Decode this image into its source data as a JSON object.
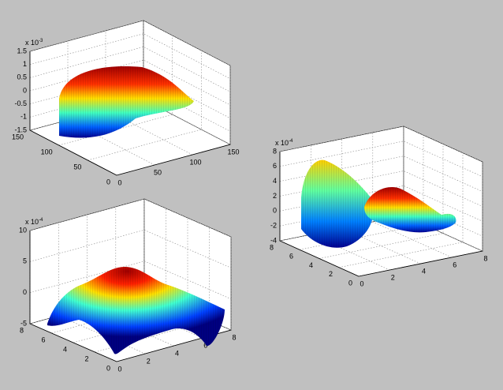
{
  "chart_data": [
    {
      "type": "surface",
      "zlabel_exponent": {
        "base": "x 10",
        "power": "-3"
      },
      "xlim": [
        0,
        150
      ],
      "xticks": [
        0,
        50,
        100,
        150
      ],
      "ylim": [
        0,
        150
      ],
      "yticks": [
        0,
        50,
        100,
        150
      ],
      "zlim": [
        -1.5,
        1.5
      ],
      "zticks": [
        -1.5,
        -1,
        -0.5,
        0,
        0.5,
        1,
        1.5
      ],
      "grid": true
    },
    {
      "type": "surface",
      "zlabel_exponent": {
        "base": "x 10",
        "power": "-4"
      },
      "xlim": [
        0,
        8
      ],
      "xticks": [
        0,
        2,
        4,
        6,
        8
      ],
      "ylim": [
        0,
        8
      ],
      "yticks": [
        0,
        2,
        4,
        6,
        8
      ],
      "zlim": [
        -4,
        8
      ],
      "zticks": [
        -4,
        -2,
        0,
        2,
        4,
        6,
        8
      ],
      "grid": true
    },
    {
      "type": "surface",
      "zlabel_exponent": {
        "base": "x 10",
        "power": "-4"
      },
      "xlim": [
        0,
        8
      ],
      "xticks": [
        0,
        2,
        4,
        6,
        8
      ],
      "ylim": [
        0,
        8
      ],
      "yticks": [
        0,
        2,
        4,
        6,
        8
      ],
      "zlim": [
        -5,
        10
      ],
      "zticks": [
        -5,
        0,
        5,
        10
      ],
      "grid": true
    }
  ]
}
